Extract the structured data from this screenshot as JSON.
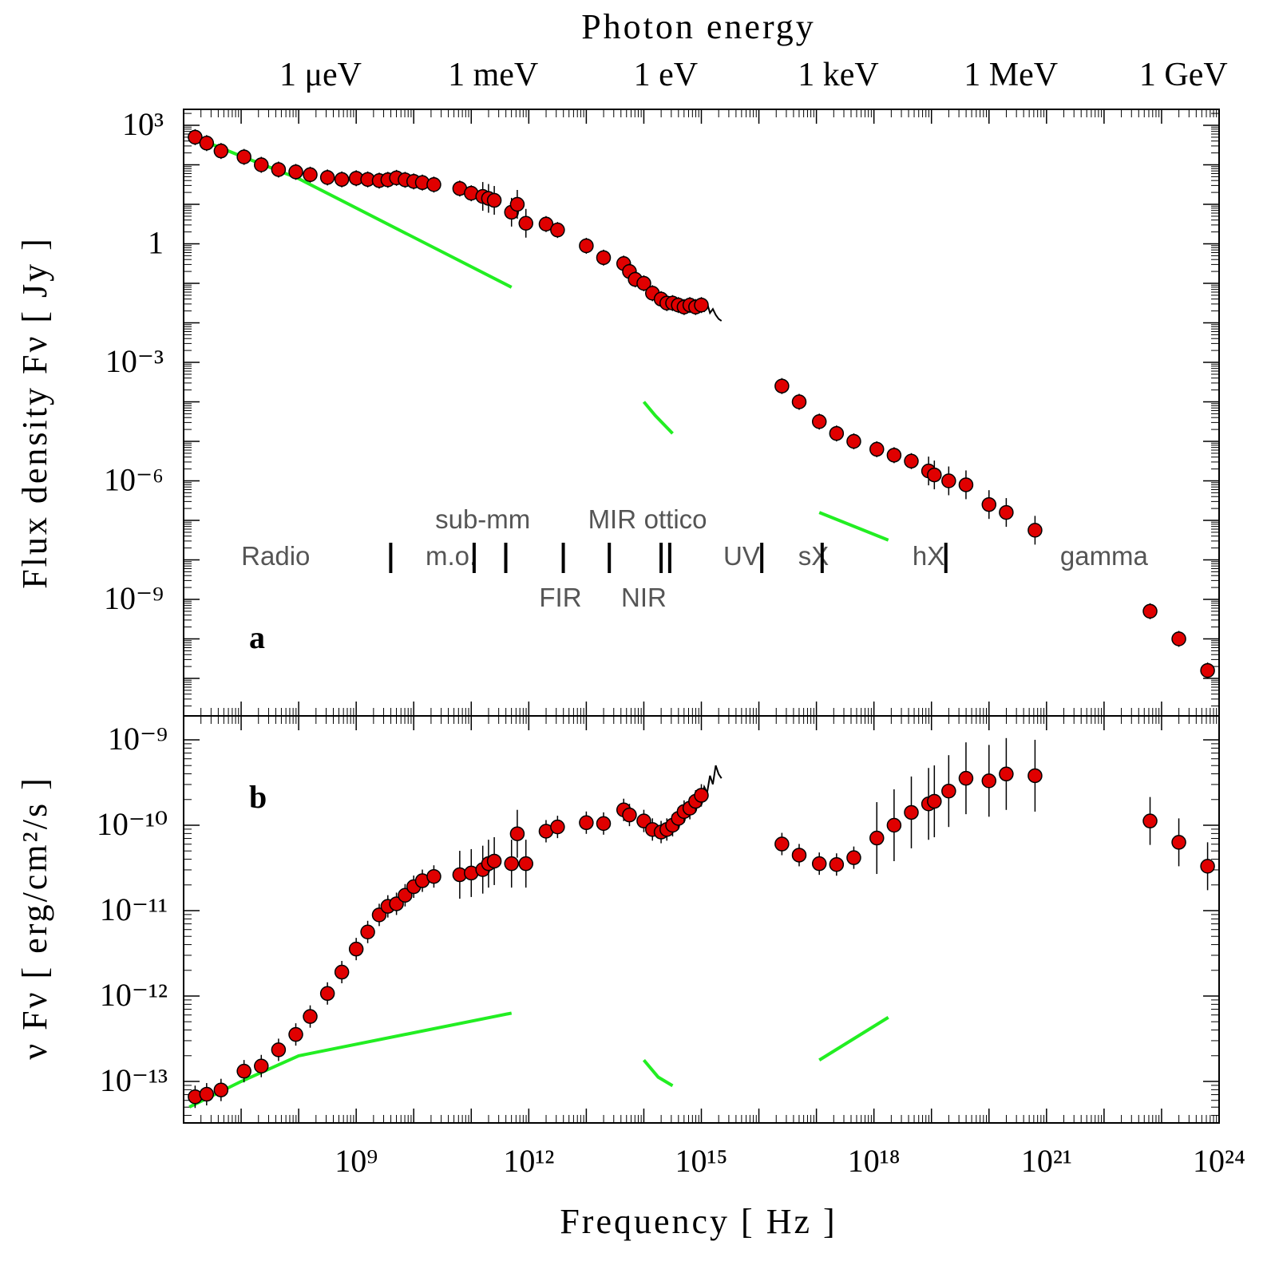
{
  "chart_data": [
    {
      "id": "a",
      "type": "scatter",
      "panel_label": "a",
      "top_title": "Photon energy",
      "energy_ticks": [
        {
          "text": "1 μeV",
          "freq_log": 8.38
        },
        {
          "text": "1 meV",
          "freq_log": 11.38
        },
        {
          "text": "1 eV",
          "freq_log": 14.38
        },
        {
          "text": "1 keV",
          "freq_log": 17.38
        },
        {
          "text": "1 MeV",
          "freq_log": 20.38
        },
        {
          "text": "1 GeV",
          "freq_log": 23.38
        }
      ],
      "ylabel": "Flux density Fν [ Jy ]",
      "yscale": "log",
      "ylim_log10": [
        -12.3,
        3.3
      ],
      "xlim_log10": [
        6.0,
        24.0
      ],
      "y_ticks": [
        {
          "log": 3,
          "text": "10³"
        },
        {
          "log": 0,
          "text": "1"
        },
        {
          "log": -3,
          "text": "10⁻³"
        },
        {
          "log": -6,
          "text": "10⁻⁶"
        },
        {
          "log": -9,
          "text": "10⁻⁹"
        }
      ],
      "points_log": [
        [
          6.2,
          2.7
        ],
        [
          6.4,
          2.55
        ],
        [
          6.65,
          2.35
        ],
        [
          7.05,
          2.2
        ],
        [
          7.35,
          2.0
        ],
        [
          7.65,
          1.88
        ],
        [
          7.95,
          1.82
        ],
        [
          8.2,
          1.75
        ],
        [
          8.5,
          1.68
        ],
        [
          8.75,
          1.63
        ],
        [
          9.0,
          1.66
        ],
        [
          9.2,
          1.63
        ],
        [
          9.4,
          1.6
        ],
        [
          9.55,
          1.62
        ],
        [
          9.7,
          1.67
        ],
        [
          9.85,
          1.62
        ],
        [
          10.0,
          1.58
        ],
        [
          10.15,
          1.55
        ],
        [
          10.35,
          1.5
        ],
        [
          10.8,
          1.4
        ],
        [
          11.0,
          1.28
        ],
        [
          11.2,
          1.2
        ],
        [
          11.3,
          1.15
        ],
        [
          11.4,
          1.1
        ],
        [
          11.7,
          0.8
        ],
        [
          11.8,
          1.0
        ],
        [
          11.95,
          0.52
        ],
        [
          12.3,
          0.5
        ],
        [
          12.5,
          0.35
        ],
        [
          13.0,
          -0.05
        ],
        [
          13.3,
          -0.35
        ],
        [
          13.65,
          -0.5
        ],
        [
          13.75,
          -0.7
        ],
        [
          13.85,
          -0.9
        ],
        [
          14.0,
          -1.0
        ],
        [
          14.15,
          -1.25
        ],
        [
          14.3,
          -1.4
        ],
        [
          14.4,
          -1.5
        ],
        [
          14.5,
          -1.5
        ],
        [
          14.6,
          -1.55
        ],
        [
          14.7,
          -1.6
        ],
        [
          14.8,
          -1.55
        ],
        [
          14.9,
          -1.6
        ],
        [
          15.0,
          -1.55
        ],
        [
          16.4,
          -3.6
        ],
        [
          16.7,
          -4.0
        ],
        [
          17.05,
          -4.5
        ],
        [
          17.35,
          -4.8
        ],
        [
          17.65,
          -5.0
        ],
        [
          18.05,
          -5.2
        ],
        [
          18.35,
          -5.35
        ],
        [
          18.65,
          -5.5
        ],
        [
          18.95,
          -5.75
        ],
        [
          19.05,
          -5.85
        ],
        [
          19.3,
          -6.0
        ],
        [
          19.6,
          -6.1
        ],
        [
          20.0,
          -6.6
        ],
        [
          20.3,
          -6.8
        ],
        [
          20.8,
          -7.25
        ],
        [
          22.8,
          -9.3
        ],
        [
          23.3,
          -10.0
        ],
        [
          23.8,
          -10.8
        ]
      ],
      "green_lines_log": [
        [
          [
            6.1,
            2.75
          ],
          [
            7.0,
            2.22
          ],
          [
            8.0,
            1.65
          ],
          [
            11.7,
            -1.1
          ]
        ],
        [
          [
            14.0,
            -4.0
          ],
          [
            14.2,
            -4.35
          ],
          [
            14.5,
            -4.8
          ]
        ],
        [
          [
            17.05,
            -6.8
          ],
          [
            18.25,
            -7.5
          ]
        ]
      ],
      "black_curve_log": [
        [
          14.3,
          -1.45
        ],
        [
          14.5,
          -1.6
        ],
        [
          14.7,
          -1.62
        ],
        [
          14.85,
          -1.6
        ],
        [
          14.95,
          -1.58
        ],
        [
          15.05,
          -1.7
        ],
        [
          15.1,
          -1.5
        ],
        [
          15.15,
          -1.75
        ],
        [
          15.2,
          -1.65
        ],
        [
          15.25,
          -1.8
        ],
        [
          15.3,
          -1.9
        ],
        [
          15.35,
          -1.95
        ]
      ],
      "bands": [
        {
          "text": "Radio",
          "center_log": 7.6,
          "row": "mid"
        },
        {
          "text": "m.o.",
          "center_log": 10.65,
          "row": "mid"
        },
        {
          "text": "sub-mm",
          "center_log": 11.2,
          "row": "top"
        },
        {
          "text": "FIR",
          "center_log": 12.55,
          "row": "bottom"
        },
        {
          "text": "MIR",
          "center_log": 13.45,
          "row": "top"
        },
        {
          "text": "NIR",
          "center_log": 14.0,
          "row": "bottom"
        },
        {
          "text": "ottico",
          "center_log": 14.55,
          "row": "top"
        },
        {
          "text": "UV",
          "center_log": 15.7,
          "row": "mid"
        },
        {
          "text": "sX",
          "center_log": 16.95,
          "row": "mid"
        },
        {
          "text": "hX",
          "center_log": 18.95,
          "row": "mid"
        },
        {
          "text": "gamma",
          "center_log": 22.0,
          "row": "mid"
        }
      ],
      "band_separators_log": [
        9.6,
        11.05,
        11.6,
        12.6,
        13.4,
        14.3,
        14.45,
        16.05,
        17.1,
        19.25
      ]
    },
    {
      "id": "b",
      "type": "scatter",
      "panel_label": "b",
      "xlabel": "Frequency [ Hz ]",
      "ylabel": "ν Fν [ erg/cm²/s ]",
      "yscale": "log",
      "ylim_log10": [
        -13.5,
        -9.0
      ],
      "xlim_log10": [
        6.0,
        24.0
      ],
      "x_ticks": [
        {
          "log": 9,
          "text": "10⁹"
        },
        {
          "log": 12,
          "text": "10¹²"
        },
        {
          "log": 15,
          "text": "10¹⁵"
        },
        {
          "log": 18,
          "text": "10¹⁸"
        },
        {
          "log": 21,
          "text": "10²¹"
        },
        {
          "log": 24,
          "text": "10²⁴"
        }
      ],
      "y_ticks": [
        {
          "log": -9,
          "text": "10⁻⁹"
        },
        {
          "log": -10,
          "text": "10⁻¹⁰"
        },
        {
          "log": -11,
          "text": "10⁻¹¹"
        },
        {
          "log": -12,
          "text": "10⁻¹²"
        },
        {
          "log": -13,
          "text": "10⁻¹³"
        }
      ],
      "points_log": [
        [
          6.2,
          -13.18
        ],
        [
          6.4,
          -13.15
        ],
        [
          6.65,
          -13.1
        ],
        [
          7.05,
          -12.88
        ],
        [
          7.35,
          -12.82
        ],
        [
          7.65,
          -12.63
        ],
        [
          7.95,
          -12.45
        ],
        [
          8.2,
          -12.24
        ],
        [
          8.5,
          -11.97
        ],
        [
          8.75,
          -11.72
        ],
        [
          9.0,
          -11.45
        ],
        [
          9.2,
          -11.25
        ],
        [
          9.4,
          -11.05
        ],
        [
          9.55,
          -10.95
        ],
        [
          9.7,
          -10.92
        ],
        [
          9.85,
          -10.82
        ],
        [
          10.0,
          -10.72
        ],
        [
          10.15,
          -10.65
        ],
        [
          10.35,
          -10.6
        ],
        [
          10.8,
          -10.58
        ],
        [
          11.0,
          -10.56
        ],
        [
          11.2,
          -10.52
        ],
        [
          11.3,
          -10.45
        ],
        [
          11.4,
          -10.42
        ],
        [
          11.7,
          -10.45
        ],
        [
          11.8,
          -10.1
        ],
        [
          11.95,
          -10.45
        ],
        [
          12.3,
          -10.07
        ],
        [
          12.5,
          -10.02
        ],
        [
          13.0,
          -9.97
        ],
        [
          13.3,
          -9.98
        ],
        [
          13.65,
          -9.82
        ],
        [
          13.75,
          -9.88
        ],
        [
          14.0,
          -9.95
        ],
        [
          14.15,
          -10.05
        ],
        [
          14.3,
          -10.08
        ],
        [
          14.4,
          -10.05
        ],
        [
          14.5,
          -10.0
        ],
        [
          14.6,
          -9.92
        ],
        [
          14.7,
          -9.84
        ],
        [
          14.8,
          -9.8
        ],
        [
          14.9,
          -9.72
        ],
        [
          15.0,
          -9.65
        ],
        [
          16.4,
          -10.22
        ],
        [
          16.7,
          -10.35
        ],
        [
          17.05,
          -10.45
        ],
        [
          17.35,
          -10.46
        ],
        [
          17.65,
          -10.38
        ],
        [
          18.05,
          -10.15
        ],
        [
          18.35,
          -10.0
        ],
        [
          18.65,
          -9.85
        ],
        [
          18.95,
          -9.75
        ],
        [
          19.05,
          -9.72
        ],
        [
          19.3,
          -9.6
        ],
        [
          19.6,
          -9.45
        ],
        [
          20.0,
          -9.48
        ],
        [
          20.3,
          -9.4
        ],
        [
          20.8,
          -9.42
        ],
        [
          22.8,
          -9.95
        ],
        [
          23.3,
          -10.2
        ],
        [
          23.8,
          -10.48
        ]
      ],
      "green_lines_log": [
        [
          [
            6.1,
            -13.3
          ],
          [
            7.0,
            -13.0
          ],
          [
            8.0,
            -12.7
          ],
          [
            11.7,
            -12.2
          ]
        ],
        [
          [
            14.0,
            -12.75
          ],
          [
            14.25,
            -12.95
          ],
          [
            14.5,
            -13.05
          ]
        ],
        [
          [
            17.05,
            -12.75
          ],
          [
            18.25,
            -12.25
          ]
        ]
      ],
      "black_curve_log": [
        [
          14.7,
          -9.85
        ],
        [
          14.85,
          -9.8
        ],
        [
          15.0,
          -9.7
        ],
        [
          15.05,
          -9.55
        ],
        [
          15.1,
          -9.62
        ],
        [
          15.15,
          -9.42
        ],
        [
          15.2,
          -9.52
        ],
        [
          15.25,
          -9.3
        ],
        [
          15.3,
          -9.4
        ],
        [
          15.35,
          -9.45
        ]
      ]
    }
  ],
  "colors": {
    "marker_fill": "#e00000",
    "marker_stroke": "#000000",
    "model_line": "#22ee22",
    "axes": "#000000",
    "band_text": "#555555"
  }
}
